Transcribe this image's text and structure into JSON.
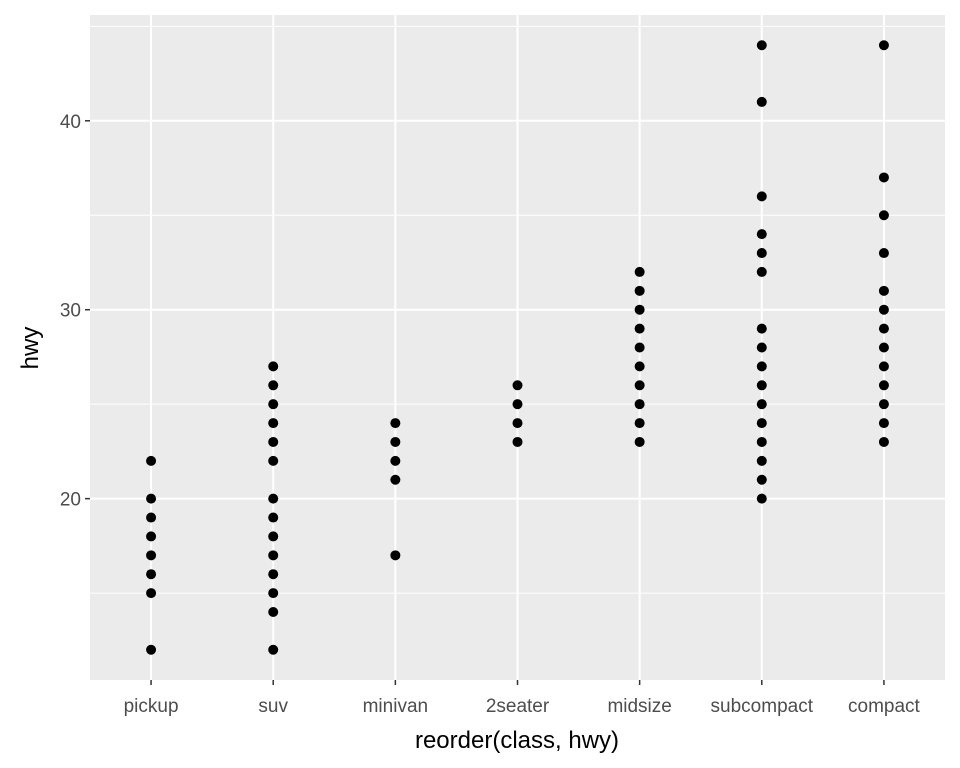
{
  "chart_data": {
    "type": "scatter",
    "xlabel": "reorder(class, hwy)",
    "ylabel": "hwy",
    "categories": [
      "pickup",
      "suv",
      "minivan",
      "2seater",
      "midsize",
      "subcompact",
      "compact"
    ],
    "ylim": [
      10.4,
      45.6
    ],
    "y_ticks": [
      20,
      30,
      40
    ],
    "y_tick_labels": [
      "20",
      "30",
      "40"
    ],
    "grid": true,
    "points": {
      "pickup": [
        12,
        15,
        16,
        17,
        18,
        19,
        20,
        22
      ],
      "suv": [
        12,
        14,
        15,
        16,
        17,
        18,
        19,
        20,
        22,
        23,
        24,
        25,
        26,
        27
      ],
      "minivan": [
        17,
        21,
        22,
        23,
        24
      ],
      "2seater": [
        23,
        24,
        25,
        26
      ],
      "midsize": [
        23,
        24,
        25,
        26,
        27,
        28,
        29,
        30,
        31,
        32
      ],
      "subcompact": [
        20,
        21,
        22,
        23,
        24,
        25,
        26,
        27,
        28,
        29,
        32,
        33,
        34,
        36,
        41,
        44
      ],
      "compact": [
        23,
        24,
        25,
        26,
        27,
        28,
        29,
        30,
        31,
        33,
        35,
        37,
        44
      ]
    },
    "colors": {
      "panel_background": "#ebebeb",
      "grid_line": "#ffffff",
      "point": "#000000",
      "tick_text": "#4d4d4d",
      "axis_title": "#000000"
    }
  }
}
